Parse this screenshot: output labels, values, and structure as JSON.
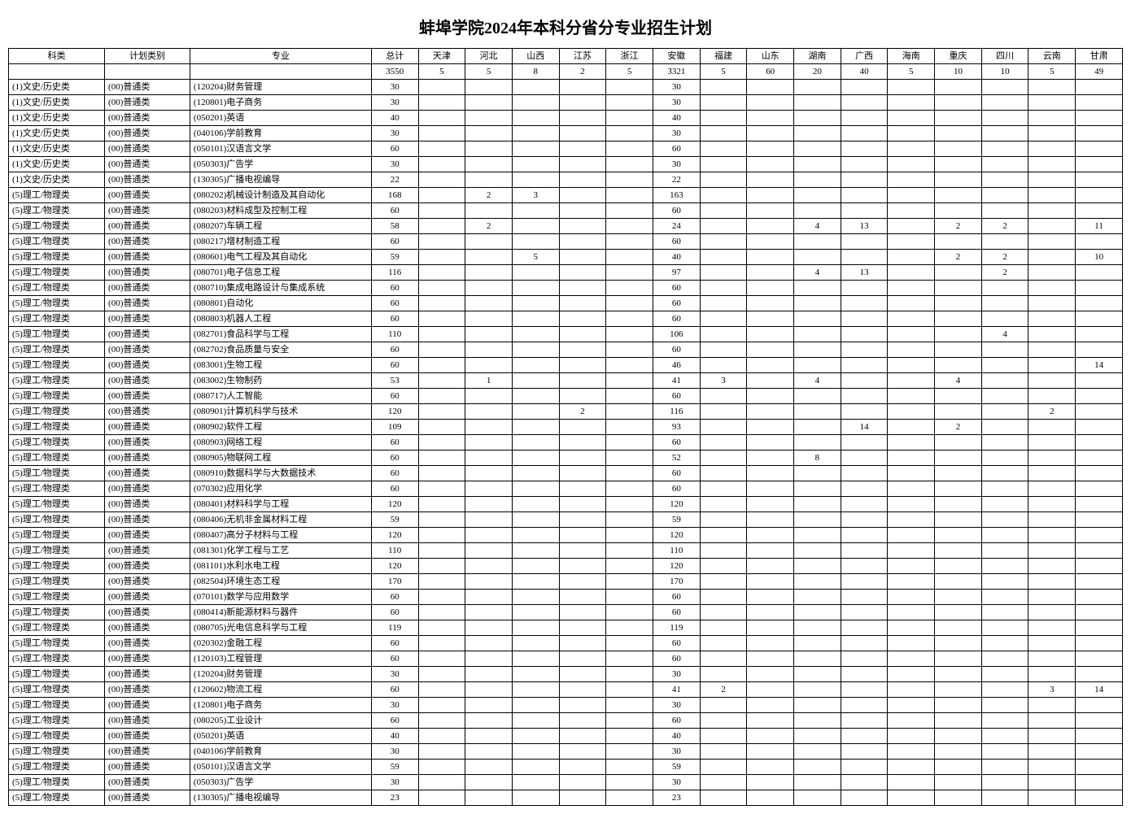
{
  "title": "蚌埠学院2024年本科分省分专业招生计划",
  "columns": [
    "科类",
    "计划类别",
    "专业",
    "总计",
    "天津",
    "河北",
    "山西",
    "江苏",
    "浙江",
    "安徽",
    "福建",
    "山东",
    "湖南",
    "广西",
    "海南",
    "重庆",
    "四川",
    "云南",
    "甘肃"
  ],
  "total_row": [
    "",
    "",
    "",
    "3550",
    "5",
    "5",
    "8",
    "2",
    "5",
    "3321",
    "5",
    "60",
    "20",
    "40",
    "5",
    "10",
    "10",
    "5",
    "49"
  ],
  "rows": [
    [
      "(1)文史/历史类",
      "(00)普通类",
      "(120204)财务管理",
      "30",
      "",
      "",
      "",
      "",
      "",
      "30",
      "",
      "",
      "",
      "",
      "",
      "",
      "",
      "",
      ""
    ],
    [
      "(1)文史/历史类",
      "(00)普通类",
      "(120801)电子商务",
      "30",
      "",
      "",
      "",
      "",
      "",
      "30",
      "",
      "",
      "",
      "",
      "",
      "",
      "",
      "",
      ""
    ],
    [
      "(1)文史/历史类",
      "(00)普通类",
      "(050201)英语",
      "40",
      "",
      "",
      "",
      "",
      "",
      "40",
      "",
      "",
      "",
      "",
      "",
      "",
      "",
      "",
      ""
    ],
    [
      "(1)文史/历史类",
      "(00)普通类",
      "(040106)学前教育",
      "30",
      "",
      "",
      "",
      "",
      "",
      "30",
      "",
      "",
      "",
      "",
      "",
      "",
      "",
      "",
      ""
    ],
    [
      "(1)文史/历史类",
      "(00)普通类",
      "(050101)汉语言文学",
      "60",
      "",
      "",
      "",
      "",
      "",
      "60",
      "",
      "",
      "",
      "",
      "",
      "",
      "",
      "",
      ""
    ],
    [
      "(1)文史/历史类",
      "(00)普通类",
      "(050303)广告学",
      "30",
      "",
      "",
      "",
      "",
      "",
      "30",
      "",
      "",
      "",
      "",
      "",
      "",
      "",
      "",
      ""
    ],
    [
      "(1)文史/历史类",
      "(00)普通类",
      "(130305)广播电视编导",
      "22",
      "",
      "",
      "",
      "",
      "",
      "22",
      "",
      "",
      "",
      "",
      "",
      "",
      "",
      "",
      ""
    ],
    [
      "(5)理工/物理类",
      "(00)普通类",
      "(080202)机械设计制造及其自动化",
      "168",
      "",
      "2",
      "3",
      "",
      "",
      "163",
      "",
      "",
      "",
      "",
      "",
      "",
      "",
      "",
      ""
    ],
    [
      "(5)理工/物理类",
      "(00)普通类",
      "(080203)材料成型及控制工程",
      "60",
      "",
      "",
      "",
      "",
      "",
      "60",
      "",
      "",
      "",
      "",
      "",
      "",
      "",
      "",
      ""
    ],
    [
      "(5)理工/物理类",
      "(00)普通类",
      "(080207)车辆工程",
      "58",
      "",
      "2",
      "",
      "",
      "",
      "24",
      "",
      "",
      "4",
      "13",
      "",
      "2",
      "2",
      "",
      "11"
    ],
    [
      "(5)理工/物理类",
      "(00)普通类",
      "(080217)增材制造工程",
      "60",
      "",
      "",
      "",
      "",
      "",
      "60",
      "",
      "",
      "",
      "",
      "",
      "",
      "",
      "",
      ""
    ],
    [
      "(5)理工/物理类",
      "(00)普通类",
      "(080601)电气工程及其自动化",
      "59",
      "",
      "",
      "5",
      "",
      "",
      "40",
      "",
      "",
      "",
      "",
      "",
      "2",
      "2",
      "",
      "10"
    ],
    [
      "(5)理工/物理类",
      "(00)普通类",
      "(080701)电子信息工程",
      "116",
      "",
      "",
      "",
      "",
      "",
      "97",
      "",
      "",
      "4",
      "13",
      "",
      "",
      "2",
      "",
      ""
    ],
    [
      "(5)理工/物理类",
      "(00)普通类",
      "(080710)集成电路设计与集成系统",
      "60",
      "",
      "",
      "",
      "",
      "",
      "60",
      "",
      "",
      "",
      "",
      "",
      "",
      "",
      "",
      ""
    ],
    [
      "(5)理工/物理类",
      "(00)普通类",
      "(080801)自动化",
      "60",
      "",
      "",
      "",
      "",
      "",
      "60",
      "",
      "",
      "",
      "",
      "",
      "",
      "",
      "",
      ""
    ],
    [
      "(5)理工/物理类",
      "(00)普通类",
      "(080803)机器人工程",
      "60",
      "",
      "",
      "",
      "",
      "",
      "60",
      "",
      "",
      "",
      "",
      "",
      "",
      "",
      "",
      ""
    ],
    [
      "(5)理工/物理类",
      "(00)普通类",
      "(082701)食品科学与工程",
      "110",
      "",
      "",
      "",
      "",
      "",
      "106",
      "",
      "",
      "",
      "",
      "",
      "",
      "4",
      "",
      ""
    ],
    [
      "(5)理工/物理类",
      "(00)普通类",
      "(082702)食品质量与安全",
      "60",
      "",
      "",
      "",
      "",
      "",
      "60",
      "",
      "",
      "",
      "",
      "",
      "",
      "",
      "",
      ""
    ],
    [
      "(5)理工/物理类",
      "(00)普通类",
      "(083001)生物工程",
      "60",
      "",
      "",
      "",
      "",
      "",
      "46",
      "",
      "",
      "",
      "",
      "",
      "",
      "",
      "",
      "14"
    ],
    [
      "(5)理工/物理类",
      "(00)普通类",
      "(083002)生物制药",
      "53",
      "",
      "1",
      "",
      "",
      "",
      "41",
      "3",
      "",
      "4",
      "",
      "",
      "4",
      "",
      "",
      ""
    ],
    [
      "(5)理工/物理类",
      "(00)普通类",
      "(080717)人工智能",
      "60",
      "",
      "",
      "",
      "",
      "",
      "60",
      "",
      "",
      "",
      "",
      "",
      "",
      "",
      "",
      ""
    ],
    [
      "(5)理工/物理类",
      "(00)普通类",
      "(080901)计算机科学与技术",
      "120",
      "",
      "",
      "",
      "2",
      "",
      "116",
      "",
      "",
      "",
      "",
      "",
      "",
      "",
      "2",
      ""
    ],
    [
      "(5)理工/物理类",
      "(00)普通类",
      "(080902)软件工程",
      "109",
      "",
      "",
      "",
      "",
      "",
      "93",
      "",
      "",
      "",
      "14",
      "",
      "2",
      "",
      "",
      ""
    ],
    [
      "(5)理工/物理类",
      "(00)普通类",
      "(080903)网络工程",
      "60",
      "",
      "",
      "",
      "",
      "",
      "60",
      "",
      "",
      "",
      "",
      "",
      "",
      "",
      "",
      ""
    ],
    [
      "(5)理工/物理类",
      "(00)普通类",
      "(080905)物联网工程",
      "60",
      "",
      "",
      "",
      "",
      "",
      "52",
      "",
      "",
      "8",
      "",
      "",
      "",
      "",
      "",
      ""
    ],
    [
      "(5)理工/物理类",
      "(00)普通类",
      "(080910)数据科学与大数据技术",
      "60",
      "",
      "",
      "",
      "",
      "",
      "60",
      "",
      "",
      "",
      "",
      "",
      "",
      "",
      "",
      ""
    ],
    [
      "(5)理工/物理类",
      "(00)普通类",
      "(070302)应用化学",
      "60",
      "",
      "",
      "",
      "",
      "",
      "60",
      "",
      "",
      "",
      "",
      "",
      "",
      "",
      "",
      ""
    ],
    [
      "(5)理工/物理类",
      "(00)普通类",
      "(080401)材料科学与工程",
      "120",
      "",
      "",
      "",
      "",
      "",
      "120",
      "",
      "",
      "",
      "",
      "",
      "",
      "",
      "",
      ""
    ],
    [
      "(5)理工/物理类",
      "(00)普通类",
      "(080406)无机非金属材料工程",
      "59",
      "",
      "",
      "",
      "",
      "",
      "59",
      "",
      "",
      "",
      "",
      "",
      "",
      "",
      "",
      ""
    ],
    [
      "(5)理工/物理类",
      "(00)普通类",
      "(080407)高分子材料与工程",
      "120",
      "",
      "",
      "",
      "",
      "",
      "120",
      "",
      "",
      "",
      "",
      "",
      "",
      "",
      "",
      ""
    ],
    [
      "(5)理工/物理类",
      "(00)普通类",
      "(081301)化学工程与工艺",
      "110",
      "",
      "",
      "",
      "",
      "",
      "110",
      "",
      "",
      "",
      "",
      "",
      "",
      "",
      "",
      ""
    ],
    [
      "(5)理工/物理类",
      "(00)普通类",
      "(081101)水利水电工程",
      "120",
      "",
      "",
      "",
      "",
      "",
      "120",
      "",
      "",
      "",
      "",
      "",
      "",
      "",
      "",
      ""
    ],
    [
      "(5)理工/物理类",
      "(00)普通类",
      "(082504)环境生态工程",
      "170",
      "",
      "",
      "",
      "",
      "",
      "170",
      "",
      "",
      "",
      "",
      "",
      "",
      "",
      "",
      ""
    ],
    [
      "(5)理工/物理类",
      "(00)普通类",
      "(070101)数学与应用数学",
      "60",
      "",
      "",
      "",
      "",
      "",
      "60",
      "",
      "",
      "",
      "",
      "",
      "",
      "",
      "",
      ""
    ],
    [
      "(5)理工/物理类",
      "(00)普通类",
      "(080414)新能源材料与器件",
      "60",
      "",
      "",
      "",
      "",
      "",
      "60",
      "",
      "",
      "",
      "",
      "",
      "",
      "",
      "",
      ""
    ],
    [
      "(5)理工/物理类",
      "(00)普通类",
      "(080705)光电信息科学与工程",
      "119",
      "",
      "",
      "",
      "",
      "",
      "119",
      "",
      "",
      "",
      "",
      "",
      "",
      "",
      "",
      ""
    ],
    [
      "(5)理工/物理类",
      "(00)普通类",
      "(020302)金融工程",
      "60",
      "",
      "",
      "",
      "",
      "",
      "60",
      "",
      "",
      "",
      "",
      "",
      "",
      "",
      "",
      ""
    ],
    [
      "(5)理工/物理类",
      "(00)普通类",
      "(120103)工程管理",
      "60",
      "",
      "",
      "",
      "",
      "",
      "60",
      "",
      "",
      "",
      "",
      "",
      "",
      "",
      "",
      ""
    ],
    [
      "(5)理工/物理类",
      "(00)普通类",
      "(120204)财务管理",
      "30",
      "",
      "",
      "",
      "",
      "",
      "30",
      "",
      "",
      "",
      "",
      "",
      "",
      "",
      "",
      ""
    ],
    [
      "(5)理工/物理类",
      "(00)普通类",
      "(120602)物流工程",
      "60",
      "",
      "",
      "",
      "",
      "",
      "41",
      "2",
      "",
      "",
      "",
      "",
      "",
      "",
      "3",
      "14"
    ],
    [
      "(5)理工/物理类",
      "(00)普通类",
      "(120801)电子商务",
      "30",
      "",
      "",
      "",
      "",
      "",
      "30",
      "",
      "",
      "",
      "",
      "",
      "",
      "",
      "",
      ""
    ],
    [
      "(5)理工/物理类",
      "(00)普通类",
      "(080205)工业设计",
      "60",
      "",
      "",
      "",
      "",
      "",
      "60",
      "",
      "",
      "",
      "",
      "",
      "",
      "",
      "",
      ""
    ],
    [
      "(5)理工/物理类",
      "(00)普通类",
      "(050201)英语",
      "40",
      "",
      "",
      "",
      "",
      "",
      "40",
      "",
      "",
      "",
      "",
      "",
      "",
      "",
      "",
      ""
    ],
    [
      "(5)理工/物理类",
      "(00)普通类",
      "(040106)学前教育",
      "30",
      "",
      "",
      "",
      "",
      "",
      "30",
      "",
      "",
      "",
      "",
      "",
      "",
      "",
      "",
      ""
    ],
    [
      "(5)理工/物理类",
      "(00)普通类",
      "(050101)汉语言文学",
      "59",
      "",
      "",
      "",
      "",
      "",
      "59",
      "",
      "",
      "",
      "",
      "",
      "",
      "",
      "",
      ""
    ],
    [
      "(5)理工/物理类",
      "(00)普通类",
      "(050303)广告学",
      "30",
      "",
      "",
      "",
      "",
      "",
      "30",
      "",
      "",
      "",
      "",
      "",
      "",
      "",
      "",
      ""
    ],
    [
      "(5)理工/物理类",
      "(00)普通类",
      "(130305)广播电视编导",
      "23",
      "",
      "",
      "",
      "",
      "",
      "23",
      "",
      "",
      "",
      "",
      "",
      "",
      "",
      "",
      ""
    ]
  ]
}
